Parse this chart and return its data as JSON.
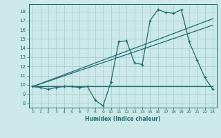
{
  "title": "",
  "xlabel": "Humidex (Indice chaleur)",
  "bg_color": "#cce8e8",
  "line_color": "#1a6b6b",
  "grid_color": "#aacfcf",
  "xlim": [
    -0.5,
    23.5
  ],
  "ylim": [
    7.5,
    18.8
  ],
  "xticks": [
    0,
    1,
    2,
    3,
    4,
    5,
    6,
    7,
    8,
    9,
    10,
    11,
    12,
    13,
    14,
    15,
    16,
    17,
    18,
    19,
    20,
    21,
    22,
    23
  ],
  "yticks": [
    8,
    9,
    10,
    11,
    12,
    13,
    14,
    15,
    16,
    17,
    18
  ],
  "main_x": [
    0,
    1,
    2,
    3,
    4,
    5,
    6,
    7,
    8,
    9,
    10,
    11,
    12,
    13,
    14,
    15,
    16,
    17,
    18,
    19,
    20,
    21,
    22,
    23
  ],
  "main_y": [
    9.8,
    9.7,
    9.5,
    9.7,
    9.8,
    9.8,
    9.7,
    9.8,
    8.3,
    7.7,
    10.3,
    14.7,
    14.8,
    12.4,
    12.2,
    17.0,
    18.2,
    17.9,
    17.8,
    18.2,
    14.7,
    12.7,
    10.8,
    9.5
  ],
  "flat_line_x": [
    0,
    23
  ],
  "flat_line_y": [
    9.8,
    9.8
  ],
  "trend1_x": [
    0,
    23
  ],
  "trend1_y": [
    9.8,
    16.5
  ],
  "trend2_x": [
    0,
    23
  ],
  "trend2_y": [
    9.8,
    17.2
  ]
}
